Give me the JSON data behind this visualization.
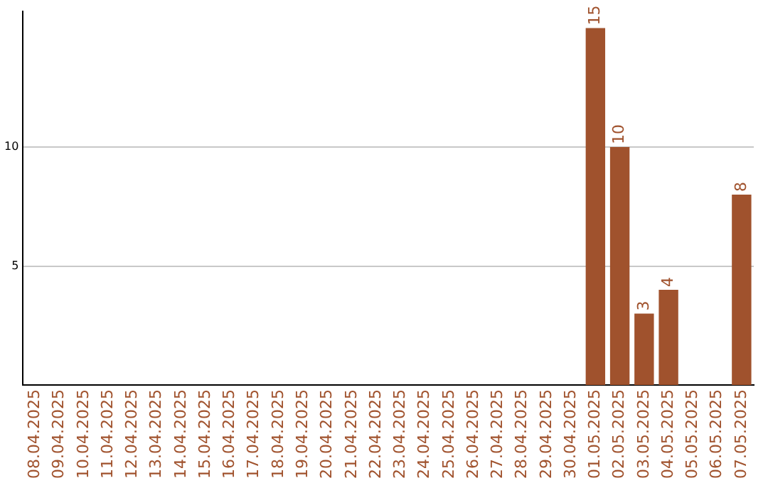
{
  "chart_data": {
    "type": "bar",
    "categories": [
      "08.04.2025",
      "09.04.2025",
      "10.04.2025",
      "11.04.2025",
      "12.04.2025",
      "13.04.2025",
      "14.04.2025",
      "15.04.2025",
      "16.04.2025",
      "17.04.2025",
      "18.04.2025",
      "19.04.2025",
      "20.04.2025",
      "21.04.2025",
      "22.04.2025",
      "23.04.2025",
      "24.04.2025",
      "25.04.2025",
      "26.04.2025",
      "27.04.2025",
      "28.04.2025",
      "29.04.2025",
      "30.04.2025",
      "01.05.2025",
      "02.05.2025",
      "03.05.2025",
      "04.05.2025",
      "05.05.2025",
      "06.05.2025",
      "07.05.2025"
    ],
    "values": [
      0,
      0,
      0,
      0,
      0,
      0,
      0,
      0,
      0,
      0,
      0,
      0,
      0,
      0,
      0,
      0,
      0,
      0,
      0,
      0,
      0,
      0,
      0,
      15,
      10,
      3,
      4,
      0,
      0,
      8
    ],
    "value_labels": [
      null,
      null,
      null,
      null,
      null,
      null,
      null,
      null,
      null,
      null,
      null,
      null,
      null,
      null,
      null,
      null,
      null,
      null,
      null,
      null,
      null,
      null,
      null,
      "15",
      "10",
      "3",
      "4",
      null,
      null,
      "8"
    ],
    "color": "#a0522d",
    "ylim": [
      0,
      15.7
    ],
    "yticks": [
      5,
      10
    ],
    "grid": "y",
    "legend": false
  }
}
